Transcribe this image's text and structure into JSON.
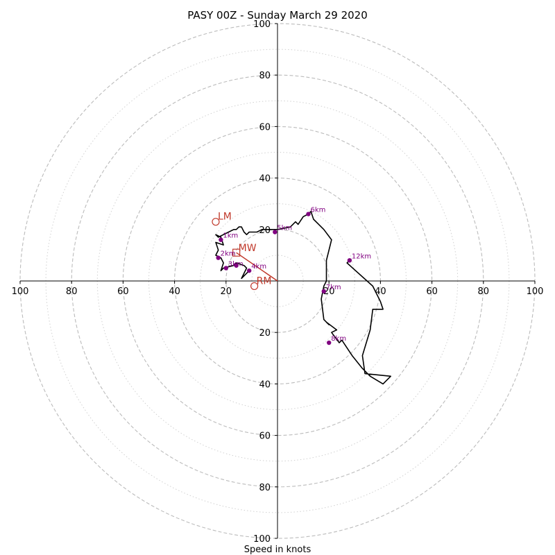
{
  "chart_data": {
    "type": "line",
    "title": "PASY 00Z - Sunday March 29 2020",
    "xlabel": "Speed in knots",
    "ylabel": "",
    "xlim": [
      -100,
      100
    ],
    "ylim": [
      -100,
      100
    ],
    "rings_major": [
      20,
      40,
      60,
      80,
      100
    ],
    "rings_minor": [
      10,
      30,
      50,
      70,
      90
    ],
    "ticks": {
      "x_left": [
        "100",
        "80",
        "60",
        "40",
        "20"
      ],
      "x_right": [
        "20",
        "40",
        "60",
        "80",
        "100"
      ],
      "y_top": [
        "20",
        "40",
        "60",
        "80",
        "100"
      ],
      "y_bottom": [
        "20",
        "40",
        "60",
        "80",
        "100"
      ]
    },
    "colors": {
      "trace": "#000000",
      "height_marker": "#800080",
      "storm": "#c0392b",
      "ring_major": "#bbbbbb",
      "ring_minor": "#d0d0d0"
    },
    "hodograph": {
      "x": [
        -11,
        -14,
        -12,
        -13,
        -16,
        -17,
        -21,
        -22,
        -21,
        -22,
        -24,
        -23,
        -24,
        -21,
        -22,
        -24,
        -23,
        -21,
        -19,
        -17,
        -16,
        -15,
        -14,
        -13,
        -12,
        -11,
        -10,
        -8,
        -6,
        -3,
        0,
        5,
        7,
        8,
        10,
        12,
        13,
        14,
        16,
        18,
        21,
        20,
        19,
        19,
        18,
        17,
        18,
        20,
        19,
        23,
        21,
        24,
        25,
        29,
        33,
        36,
        41,
        44,
        34,
        33,
        36,
        37,
        41,
        40,
        37,
        27,
        28
      ],
      "y": [
        4,
        1,
        5,
        6,
        7,
        6,
        5,
        4,
        7,
        9,
        10,
        12,
        15,
        14,
        17,
        18,
        17,
        18,
        19,
        20,
        20,
        21,
        21,
        19,
        18,
        19,
        19,
        19,
        20,
        20,
        20,
        21,
        23,
        22,
        25,
        26,
        27,
        24,
        22,
        20,
        16,
        12,
        8,
        0,
        -2,
        -7,
        -15,
        -17,
        -16,
        -19,
        -20,
        -24,
        -23,
        -29,
        -34,
        -37,
        -40,
        -37,
        -36,
        -29,
        -19,
        -11,
        -11,
        -8,
        -2,
        7,
        8
      ]
    },
    "height_markers": [
      {
        "label": "1km",
        "x": -22,
        "y": 16
      },
      {
        "label": "2km",
        "x": -23,
        "y": 9
      },
      {
        "label": "3km",
        "x": -20,
        "y": 5
      },
      {
        "label": "",
        "x": -16,
        "y": 6
      },
      {
        "label": "4km",
        "x": -11,
        "y": 4
      },
      {
        "label": "5km",
        "x": -1,
        "y": 19
      },
      {
        "label": "6km",
        "x": 12,
        "y": 26
      },
      {
        "label": "7km",
        "x": 18,
        "y": -4
      },
      {
        "label": "8km",
        "x": 20,
        "y": -24
      },
      {
        "label": "12km",
        "x": 28,
        "y": 8
      }
    ],
    "storm_motion": {
      "LM": {
        "label": "LM",
        "x": -24,
        "y": 23
      },
      "RM": {
        "label": "RM",
        "x": -9,
        "y": -2
      },
      "MW": {
        "label": "MW",
        "x": -16,
        "y": 11
      },
      "vector": {
        "x": -16,
        "y": 11
      }
    }
  }
}
